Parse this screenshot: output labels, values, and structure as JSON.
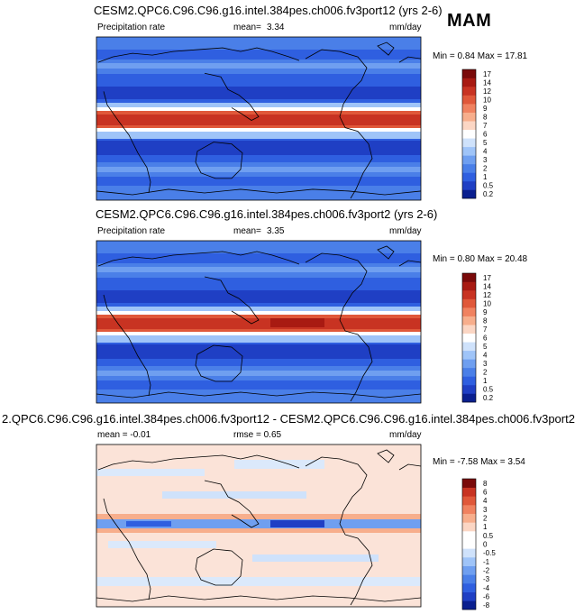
{
  "season": "MAM",
  "chart_data": [
    {
      "type": "heatmap",
      "title": "CESM2.QPC6.C96.C96.g16.intel.384pes.ch006.fv3port12 (yrs 2-6)",
      "left_label": "Precipitation rate",
      "stat_label": "mean=",
      "stat_value": "3.34",
      "units": "mm/day",
      "min_label": "Min =",
      "min_value": "0.84",
      "max_label": "Max =",
      "max_value": "17.81",
      "colorbar_levels": [
        "0.2",
        "0.5",
        "1",
        "2",
        "3",
        "4",
        "5",
        "6",
        "7",
        "8",
        "9",
        "10",
        "12",
        "14",
        "17"
      ],
      "colorbar_colors": [
        "#0a1f8f",
        "#1f3fc4",
        "#2f5fe0",
        "#4a7fe8",
        "#6f9ff0",
        "#9fc4f8",
        "#cfe2fb",
        "#ffffff",
        "#fbd6c4",
        "#f7ae8c",
        "#f08260",
        "#e0583a",
        "#c83322",
        "#a81a12",
        "#7a0a0a"
      ]
    },
    {
      "type": "heatmap",
      "title": "CESM2.QPC6.C96.C96.g16.intel.384pes.ch006.fv3port2 (yrs 2-6)",
      "left_label": "Precipitation rate",
      "stat_label": "mean=",
      "stat_value": "3.35",
      "units": "mm/day",
      "min_label": "Min =",
      "min_value": "0.80",
      "max_label": "Max =",
      "max_value": "20.48",
      "colorbar_levels": [
        "0.2",
        "0.5",
        "1",
        "2",
        "3",
        "4",
        "5",
        "6",
        "7",
        "8",
        "9",
        "10",
        "12",
        "14",
        "17"
      ],
      "colorbar_colors": [
        "#0a1f8f",
        "#1f3fc4",
        "#2f5fe0",
        "#4a7fe8",
        "#6f9ff0",
        "#9fc4f8",
        "#cfe2fb",
        "#ffffff",
        "#fbd6c4",
        "#f7ae8c",
        "#f08260",
        "#e0583a",
        "#c83322",
        "#a81a12",
        "#7a0a0a"
      ]
    },
    {
      "type": "heatmap",
      "title": "2.QPC6.C96.C96.g16.intel.384pes.ch006.fv3port12 - CESM2.QPC6.C96.C96.g16.intel.384pes.ch006.fv3port2",
      "stat_label": "mean =",
      "stat_value": "-0.01",
      "rmse_label": "rmse =",
      "rmse_value": "0.65",
      "units": "mm/day",
      "min_label": "Min =",
      "min_value": "-7.58",
      "max_label": "Max =",
      "max_value": "3.54",
      "colorbar_levels": [
        "-8",
        "-6",
        "-4",
        "-3",
        "-2",
        "-1",
        "-0.5",
        "0",
        "0.5",
        "1",
        "2",
        "3",
        "4",
        "6",
        "8"
      ],
      "colorbar_colors": [
        "#0a1f8f",
        "#1f3fc4",
        "#2f5fe0",
        "#4a7fe8",
        "#6f9ff0",
        "#9fc4f8",
        "#cfe2fb",
        "#ffffff",
        "#ffffff",
        "#fbd6c4",
        "#f7ae8c",
        "#f08260",
        "#e0583a",
        "#c83322",
        "#7a0a0a"
      ]
    }
  ]
}
